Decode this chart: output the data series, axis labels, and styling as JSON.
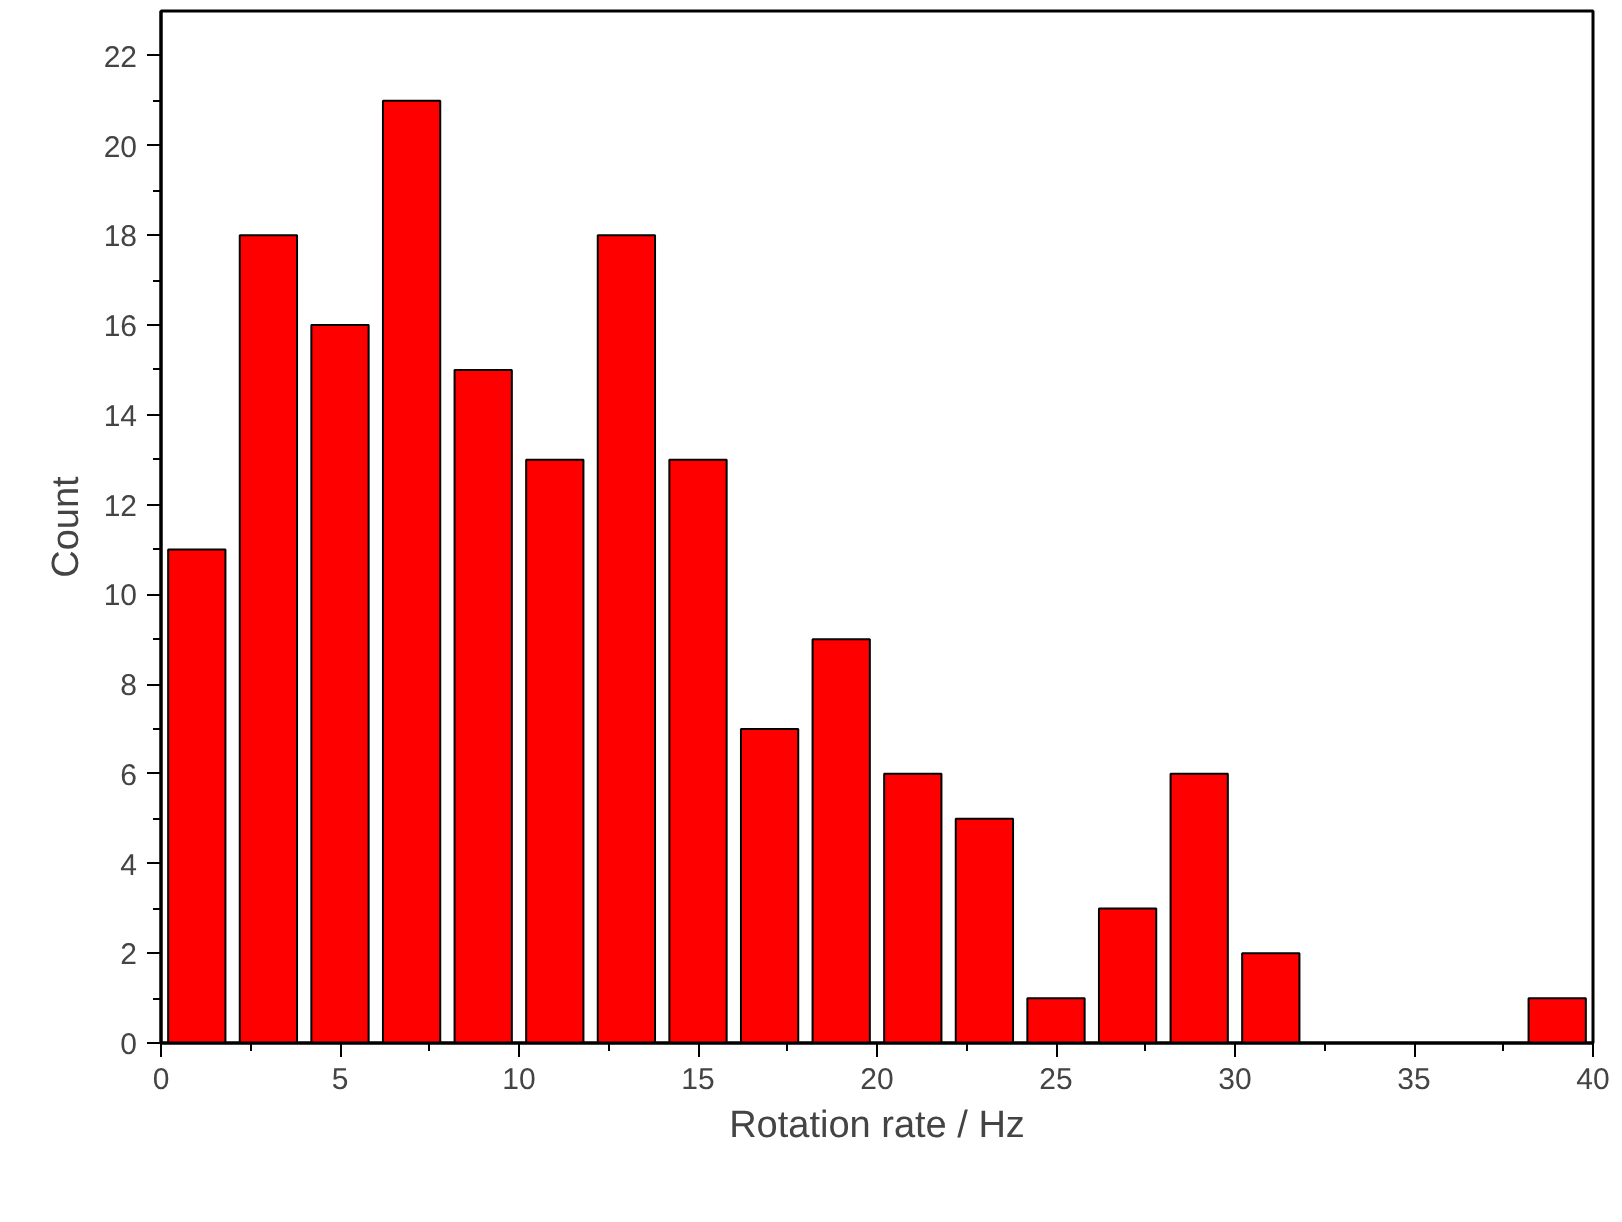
{
  "chart_data": {
    "type": "histogram",
    "xlabel": "Rotation rate / Hz",
    "ylabel": "Count",
    "bins": [
      0,
      2,
      4,
      6,
      8,
      10,
      12,
      14,
      16,
      18,
      20,
      22,
      24,
      26,
      28,
      30,
      32,
      34,
      36,
      38,
      40
    ],
    "values": [
      11,
      18,
      16,
      21,
      15,
      13,
      18,
      13,
      7,
      9,
      6,
      5,
      1,
      3,
      6,
      2,
      0,
      0,
      0,
      1
    ],
    "color": "#ff0000",
    "xlim": [
      0,
      40
    ],
    "xticks": [
      0,
      5,
      10,
      15,
      20,
      25,
      30,
      35,
      40
    ],
    "ylim": [
      0,
      23
    ],
    "yticks": [
      0,
      2,
      4,
      6,
      8,
      10,
      12,
      14,
      16,
      18,
      20,
      22
    ],
    "grid": false
  }
}
